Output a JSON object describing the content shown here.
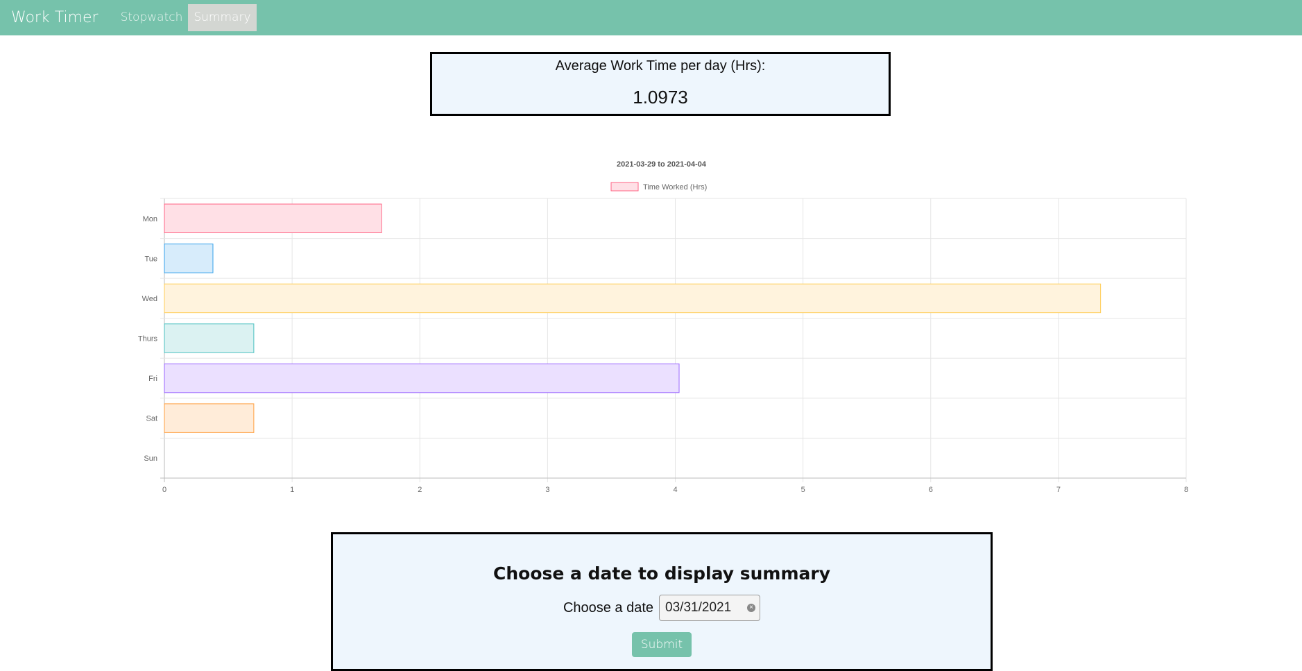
{
  "navbar": {
    "brand": "Work Timer",
    "links": [
      {
        "label": "Stopwatch",
        "active": false
      },
      {
        "label": "Summary",
        "active": true
      }
    ],
    "color": "#76c2ab"
  },
  "average": {
    "label": "Average Work Time per day (Hrs):",
    "value": "1.0973"
  },
  "chart_data": {
    "type": "bar",
    "orientation": "horizontal",
    "title": "2021-03-29 to 2021-04-04",
    "categories": [
      "Mon",
      "Tue",
      "Wed",
      "Thurs",
      "Fri",
      "Sat",
      "Sun"
    ],
    "series": [
      {
        "name": "Time Worked (Hrs)",
        "values": [
          1.7,
          0.38,
          7.33,
          0.7,
          4.03,
          0.7,
          0
        ],
        "fill_colors": [
          "#ffe0e6",
          "#d7ecfb",
          "#fff3dd",
          "#dbf2f2",
          "#ebe0ff",
          "#ffecd9",
          "#f4f5f5"
        ],
        "border_colors": [
          "#ff6384",
          "#36a2eb",
          "#ffcd56",
          "#4bc0c0",
          "#9966ff",
          "#ff9f40",
          "#c9cbcf"
        ]
      }
    ],
    "xlim": [
      0,
      8
    ],
    "x_ticks": [
      "0",
      "1",
      "2",
      "3",
      "4",
      "5",
      "6",
      "7",
      "8"
    ],
    "grid": true,
    "legend_position": "top"
  },
  "form": {
    "title": "Choose a date to display summary",
    "date_label": "Choose a date",
    "date_value": "03/31/2021",
    "submit_label": "Submit"
  }
}
